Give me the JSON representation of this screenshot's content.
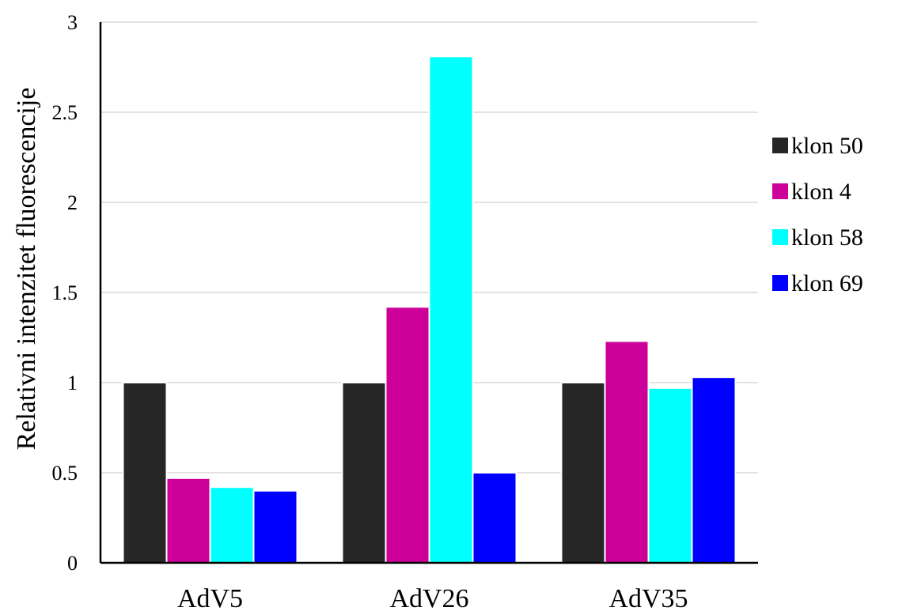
{
  "chart_data": {
    "type": "bar",
    "categories": [
      "AdV5",
      "AdV26",
      "AdV35"
    ],
    "series": [
      {
        "name": "klon 50",
        "color": "#262626",
        "values": [
          1.0,
          1.0,
          1.0
        ]
      },
      {
        "name": "klon 4",
        "color": "#cc0099",
        "values": [
          0.47,
          1.42,
          1.23
        ]
      },
      {
        "name": "klon 58",
        "color": "#00ffff",
        "values": [
          0.42,
          2.81,
          0.97
        ]
      },
      {
        "name": "klon 69",
        "color": "#0000ff",
        "values": [
          0.4,
          0.5,
          1.03
        ]
      }
    ],
    "title": "",
    "xlabel": "",
    "ylabel": "Relativni intenzitet fluorescencije",
    "ylim": [
      0,
      3
    ],
    "yticks": [
      0,
      0.5,
      1,
      1.5,
      2,
      2.5,
      3
    ],
    "grid": true,
    "legend_position": "right"
  }
}
